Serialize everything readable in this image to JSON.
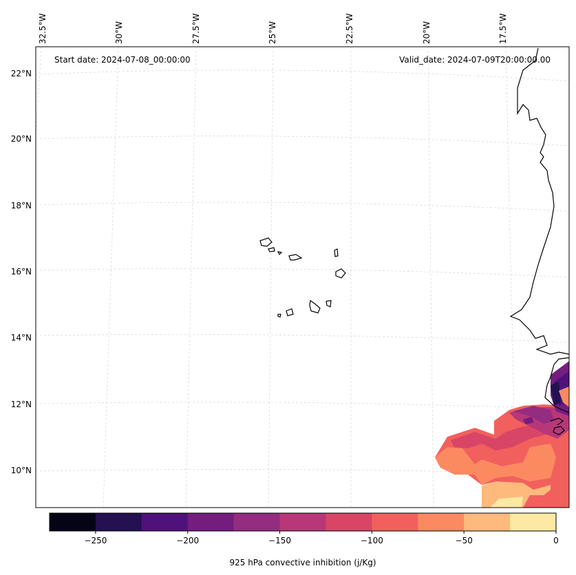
{
  "annotations": {
    "start_date": "Start date: 2024-07-08_00:00:00",
    "valid_date": "Valid_date: 2024-07-09T20:00:00.00"
  },
  "longitude_labels": [
    "32.5°W",
    "30°W",
    "27.5°W",
    "25°W",
    "22.5°W",
    "20°W",
    "17.5°W"
  ],
  "latitude_labels": [
    "22°N",
    "20°N",
    "18°N",
    "16°N",
    "14°N",
    "12°N",
    "10°N"
  ],
  "colorbar": {
    "label": "925 hPa convective inhibition (j/Kg)",
    "tick_labels": [
      "−250",
      "−200",
      "−150",
      "−100",
      "−50",
      "0"
    ],
    "range": [
      -275,
      0
    ],
    "step": 25,
    "colors": [
      "#050417",
      "#231151",
      "#4f127b",
      "#741d7f",
      "#942c80",
      "#b73779",
      "#d84566",
      "#f1605d",
      "#fc8a61",
      "#feb97c",
      "#fde9a3"
    ]
  },
  "chart_data": {
    "type": "map-contour",
    "title": "925 hPa convective inhibition (j/Kg)",
    "variable": "convective inhibition",
    "units": "j/Kg",
    "levels": [
      -275,
      -250,
      -225,
      -200,
      -175,
      -150,
      -125,
      -100,
      -75,
      -50,
      -25,
      0
    ],
    "lon_ticks": [
      -32.5,
      -30,
      -27.5,
      -25,
      -22.5,
      -20,
      -17.5
    ],
    "lat_ticks": [
      22,
      20,
      18,
      16,
      14,
      12,
      10
    ]
  }
}
